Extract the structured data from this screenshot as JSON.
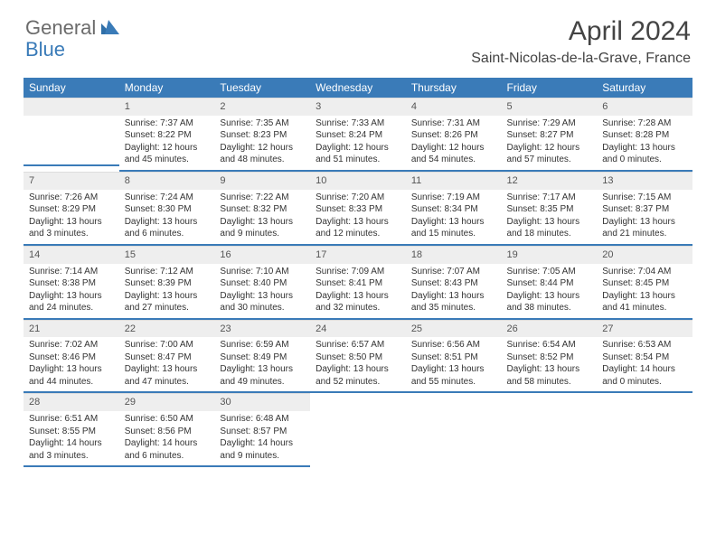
{
  "brand": {
    "general": "General",
    "blue": "Blue"
  },
  "title": "April 2024",
  "location": "Saint-Nicolas-de-la-Grave, France",
  "colors": {
    "header_bg": "#3a7bb8",
    "header_text": "#ffffff",
    "daynum_bg": "#eeeeee",
    "row_divider": "#3a7bb8",
    "title_color": "#444444",
    "text_color": "#333333",
    "logo_gray": "#6b6b6b",
    "logo_blue": "#3a7bb8"
  },
  "weekdays": [
    "Sunday",
    "Monday",
    "Tuesday",
    "Wednesday",
    "Thursday",
    "Friday",
    "Saturday"
  ],
  "weeks": [
    [
      null,
      {
        "n": "1",
        "sr": "Sunrise: 7:37 AM",
        "ss": "Sunset: 8:22 PM",
        "dl": "Daylight: 12 hours and 45 minutes."
      },
      {
        "n": "2",
        "sr": "Sunrise: 7:35 AM",
        "ss": "Sunset: 8:23 PM",
        "dl": "Daylight: 12 hours and 48 minutes."
      },
      {
        "n": "3",
        "sr": "Sunrise: 7:33 AM",
        "ss": "Sunset: 8:24 PM",
        "dl": "Daylight: 12 hours and 51 minutes."
      },
      {
        "n": "4",
        "sr": "Sunrise: 7:31 AM",
        "ss": "Sunset: 8:26 PM",
        "dl": "Daylight: 12 hours and 54 minutes."
      },
      {
        "n": "5",
        "sr": "Sunrise: 7:29 AM",
        "ss": "Sunset: 8:27 PM",
        "dl": "Daylight: 12 hours and 57 minutes."
      },
      {
        "n": "6",
        "sr": "Sunrise: 7:28 AM",
        "ss": "Sunset: 8:28 PM",
        "dl": "Daylight: 13 hours and 0 minutes."
      }
    ],
    [
      {
        "n": "7",
        "sr": "Sunrise: 7:26 AM",
        "ss": "Sunset: 8:29 PM",
        "dl": "Daylight: 13 hours and 3 minutes."
      },
      {
        "n": "8",
        "sr": "Sunrise: 7:24 AM",
        "ss": "Sunset: 8:30 PM",
        "dl": "Daylight: 13 hours and 6 minutes."
      },
      {
        "n": "9",
        "sr": "Sunrise: 7:22 AM",
        "ss": "Sunset: 8:32 PM",
        "dl": "Daylight: 13 hours and 9 minutes."
      },
      {
        "n": "10",
        "sr": "Sunrise: 7:20 AM",
        "ss": "Sunset: 8:33 PM",
        "dl": "Daylight: 13 hours and 12 minutes."
      },
      {
        "n": "11",
        "sr": "Sunrise: 7:19 AM",
        "ss": "Sunset: 8:34 PM",
        "dl": "Daylight: 13 hours and 15 minutes."
      },
      {
        "n": "12",
        "sr": "Sunrise: 7:17 AM",
        "ss": "Sunset: 8:35 PM",
        "dl": "Daylight: 13 hours and 18 minutes."
      },
      {
        "n": "13",
        "sr": "Sunrise: 7:15 AM",
        "ss": "Sunset: 8:37 PM",
        "dl": "Daylight: 13 hours and 21 minutes."
      }
    ],
    [
      {
        "n": "14",
        "sr": "Sunrise: 7:14 AM",
        "ss": "Sunset: 8:38 PM",
        "dl": "Daylight: 13 hours and 24 minutes."
      },
      {
        "n": "15",
        "sr": "Sunrise: 7:12 AM",
        "ss": "Sunset: 8:39 PM",
        "dl": "Daylight: 13 hours and 27 minutes."
      },
      {
        "n": "16",
        "sr": "Sunrise: 7:10 AM",
        "ss": "Sunset: 8:40 PM",
        "dl": "Daylight: 13 hours and 30 minutes."
      },
      {
        "n": "17",
        "sr": "Sunrise: 7:09 AM",
        "ss": "Sunset: 8:41 PM",
        "dl": "Daylight: 13 hours and 32 minutes."
      },
      {
        "n": "18",
        "sr": "Sunrise: 7:07 AM",
        "ss": "Sunset: 8:43 PM",
        "dl": "Daylight: 13 hours and 35 minutes."
      },
      {
        "n": "19",
        "sr": "Sunrise: 7:05 AM",
        "ss": "Sunset: 8:44 PM",
        "dl": "Daylight: 13 hours and 38 minutes."
      },
      {
        "n": "20",
        "sr": "Sunrise: 7:04 AM",
        "ss": "Sunset: 8:45 PM",
        "dl": "Daylight: 13 hours and 41 minutes."
      }
    ],
    [
      {
        "n": "21",
        "sr": "Sunrise: 7:02 AM",
        "ss": "Sunset: 8:46 PM",
        "dl": "Daylight: 13 hours and 44 minutes."
      },
      {
        "n": "22",
        "sr": "Sunrise: 7:00 AM",
        "ss": "Sunset: 8:47 PM",
        "dl": "Daylight: 13 hours and 47 minutes."
      },
      {
        "n": "23",
        "sr": "Sunrise: 6:59 AM",
        "ss": "Sunset: 8:49 PM",
        "dl": "Daylight: 13 hours and 49 minutes."
      },
      {
        "n": "24",
        "sr": "Sunrise: 6:57 AM",
        "ss": "Sunset: 8:50 PM",
        "dl": "Daylight: 13 hours and 52 minutes."
      },
      {
        "n": "25",
        "sr": "Sunrise: 6:56 AM",
        "ss": "Sunset: 8:51 PM",
        "dl": "Daylight: 13 hours and 55 minutes."
      },
      {
        "n": "26",
        "sr": "Sunrise: 6:54 AM",
        "ss": "Sunset: 8:52 PM",
        "dl": "Daylight: 13 hours and 58 minutes."
      },
      {
        "n": "27",
        "sr": "Sunrise: 6:53 AM",
        "ss": "Sunset: 8:54 PM",
        "dl": "Daylight: 14 hours and 0 minutes."
      }
    ],
    [
      {
        "n": "28",
        "sr": "Sunrise: 6:51 AM",
        "ss": "Sunset: 8:55 PM",
        "dl": "Daylight: 14 hours and 3 minutes."
      },
      {
        "n": "29",
        "sr": "Sunrise: 6:50 AM",
        "ss": "Sunset: 8:56 PM",
        "dl": "Daylight: 14 hours and 6 minutes."
      },
      {
        "n": "30",
        "sr": "Sunrise: 6:48 AM",
        "ss": "Sunset: 8:57 PM",
        "dl": "Daylight: 14 hours and 9 minutes."
      },
      null,
      null,
      null,
      null
    ]
  ]
}
